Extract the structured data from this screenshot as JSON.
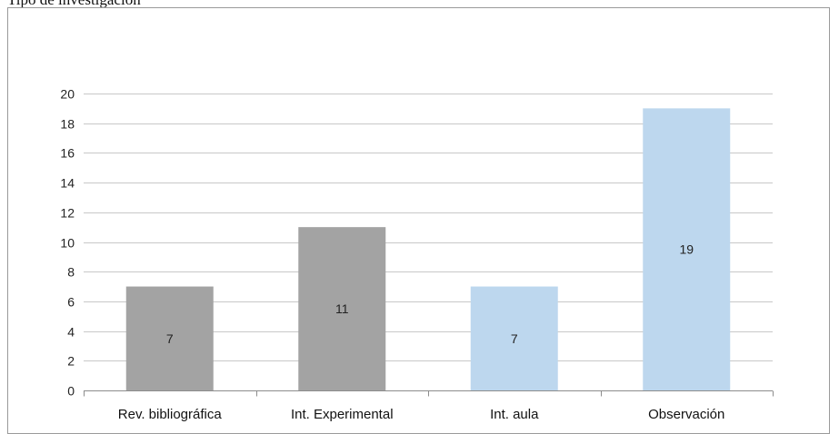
{
  "caption": "Tipo de investigación",
  "chart_data": {
    "type": "bar",
    "categories": [
      "Rev. bibliográfica",
      "Int. Experimental",
      "Int. aula",
      "Observación"
    ],
    "values": [
      7,
      11,
      7,
      19
    ],
    "data_labels": [
      "7",
      "11",
      "7",
      "19"
    ],
    "bar_colors": [
      "#a3a3a3",
      "#a3a3a3",
      "#bdd7ee",
      "#bdd7ee"
    ],
    "title": "",
    "xlabel": "",
    "ylabel": "",
    "ylim": [
      0,
      20
    ],
    "yticks": [
      0,
      2,
      4,
      6,
      8,
      10,
      12,
      14,
      16,
      18,
      20
    ],
    "grid": true,
    "legend": "none"
  }
}
